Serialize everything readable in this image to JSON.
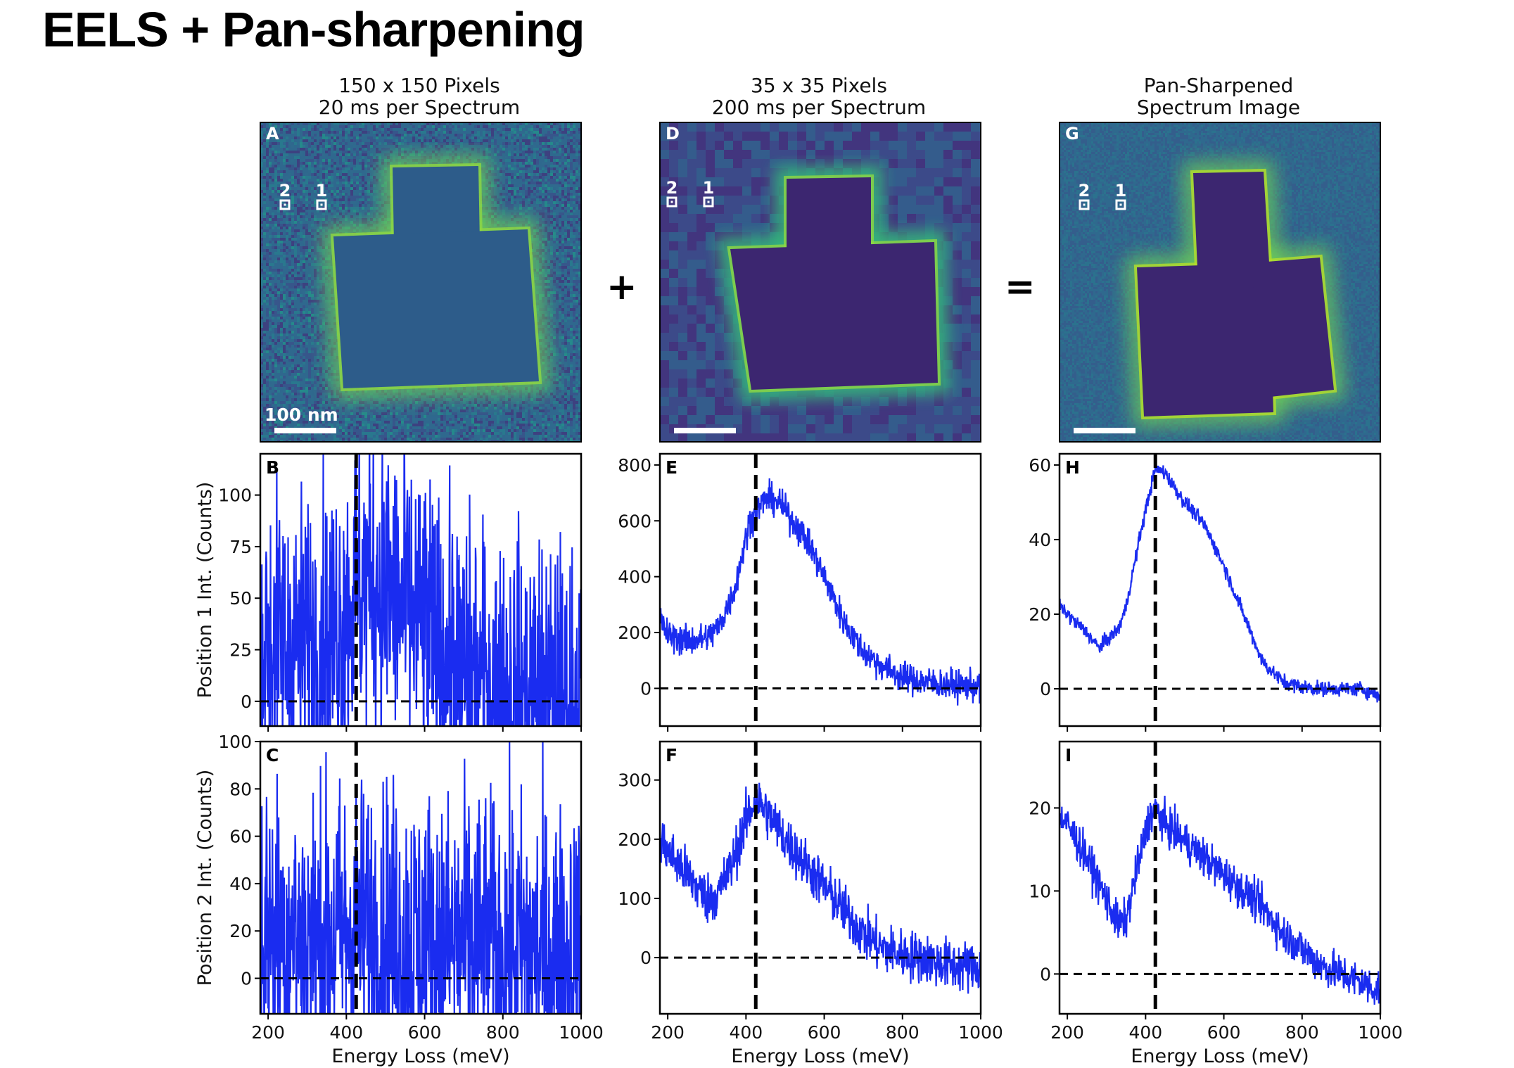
{
  "slide": {
    "title": "EELS + Pan-sharpening"
  },
  "columns": [
    {
      "title_line1": "150 x 150 Pixels",
      "title_line2": "20 ms per Spectrum"
    },
    {
      "title_line1": "35 x 35 Pixels",
      "title_line2": "200 ms per Spectrum"
    },
    {
      "title_line1": "Pan-Sharpened",
      "title_line2": "Spectrum Image"
    }
  ],
  "operators": {
    "plus": "+",
    "equals": "="
  },
  "images": [
    {
      "panel": "A",
      "scalebar_label": "100 nm",
      "markers": [
        "2",
        "1"
      ]
    },
    {
      "panel": "D",
      "scalebar_label": "",
      "markers": [
        "2",
        "1"
      ]
    },
    {
      "panel": "G",
      "scalebar_label": "",
      "markers": [
        "2",
        "1"
      ]
    }
  ],
  "colors": {
    "spectrum": "#1a2cf0",
    "dashed": "#000000",
    "colormap": "viridis"
  },
  "chart_data": [
    {
      "panel": "B",
      "type": "line",
      "row": "Position 1",
      "ylabel": "Position 1 Int. (Counts)",
      "xlabel": "",
      "xlim": [
        180,
        1000
      ],
      "ylim": [
        -12,
        120
      ],
      "yticks": [
        0,
        25,
        50,
        75,
        100
      ],
      "xticks": [
        200,
        400,
        600,
        800,
        1000
      ],
      "show_xticklabels": false,
      "vline": 425,
      "hline": 0,
      "noise": 38,
      "series": [
        {
          "x": [
            180,
            250,
            300,
            350,
            400,
            425,
            460,
            500,
            550,
            600,
            650,
            700,
            750,
            800,
            900,
            1000
          ],
          "y": [
            28,
            28,
            27,
            30,
            45,
            55,
            60,
            55,
            45,
            35,
            22,
            14,
            9,
            6,
            3,
            1
          ]
        }
      ]
    },
    {
      "panel": "E",
      "type": "line",
      "row": "Position 1",
      "ylabel": "",
      "xlabel": "",
      "xlim": [
        180,
        1000
      ],
      "ylim": [
        -135,
        840
      ],
      "yticks": [
        0,
        200,
        400,
        600,
        800
      ],
      "xticks": [
        200,
        400,
        600,
        800,
        1000
      ],
      "show_xticklabels": false,
      "vline": 425,
      "hline": 0,
      "noise": 28,
      "series": [
        {
          "x": [
            180,
            200,
            250,
            300,
            330,
            370,
            410,
            450,
            480,
            520,
            560,
            600,
            650,
            700,
            760,
            800,
            850,
            900,
            950,
            1000
          ],
          "y": [
            250,
            190,
            170,
            180,
            220,
            350,
            600,
            680,
            670,
            600,
            520,
            400,
            240,
            130,
            70,
            40,
            25,
            15,
            10,
            5
          ]
        }
      ]
    },
    {
      "panel": "H",
      "type": "line",
      "row": "Position 1",
      "ylabel": "",
      "xlabel": "",
      "xlim": [
        180,
        1000
      ],
      "ylim": [
        -10,
        63
      ],
      "yticks": [
        0,
        20,
        40,
        60
      ],
      "xticks": [
        200,
        400,
        600,
        800,
        1000
      ],
      "show_xticklabels": false,
      "vline": 425,
      "hline": 0,
      "noise": 1,
      "series": [
        {
          "x": [
            180,
            200,
            250,
            280,
            300,
            330,
            350,
            380,
            400,
            425,
            450,
            480,
            500,
            550,
            600,
            650,
            700,
            750,
            800,
            850,
            900,
            950,
            1000
          ],
          "y": [
            22,
            20,
            15,
            11,
            13,
            16,
            22,
            38,
            48,
            59,
            58,
            53,
            50,
            44,
            33,
            20,
            7,
            2,
            0.5,
            0,
            0,
            0,
            -2
          ]
        }
      ]
    },
    {
      "panel": "C",
      "type": "line",
      "row": "Position 2",
      "ylabel": "Position 2 Int. (Counts)",
      "xlabel": "Energy Loss (meV)",
      "xlim": [
        180,
        1000
      ],
      "ylim": [
        -15,
        100
      ],
      "yticks": [
        0,
        20,
        40,
        60,
        80,
        100
      ],
      "xticks": [
        200,
        400,
        600,
        800,
        1000
      ],
      "show_xticklabels": true,
      "vline": 425,
      "hline": 0,
      "noise": 32,
      "series": [
        {
          "x": [
            180,
            300,
            400,
            425,
            500,
            600,
            700,
            800,
            900,
            1000
          ],
          "y": [
            22,
            18,
            20,
            22,
            20,
            17,
            15,
            13,
            11,
            9
          ]
        }
      ]
    },
    {
      "panel": "F",
      "type": "line",
      "row": "Position 2",
      "ylabel": "",
      "xlabel": "Energy Loss (meV)",
      "xlim": [
        180,
        1000
      ],
      "ylim": [
        -95,
        365
      ],
      "yticks": [
        0,
        100,
        200,
        300
      ],
      "xticks": [
        200,
        400,
        600,
        800,
        1000
      ],
      "show_xticklabels": true,
      "vline": 425,
      "hline": 0,
      "noise": 22,
      "series": [
        {
          "x": [
            180,
            200,
            250,
            300,
            330,
            360,
            400,
            425,
            460,
            500,
            550,
            600,
            650,
            700,
            750,
            800,
            850,
            900,
            950,
            1000
          ],
          "y": [
            200,
            180,
            140,
            100,
            110,
            150,
            230,
            270,
            240,
            200,
            160,
            120,
            80,
            40,
            15,
            5,
            0,
            -10,
            -15,
            -15
          ]
        }
      ]
    },
    {
      "panel": "I",
      "type": "line",
      "row": "Position 2",
      "ylabel": "",
      "xlabel": "Energy Loss (meV)",
      "xlim": [
        180,
        1000
      ],
      "ylim": [
        -4.8,
        28
      ],
      "yticks": [
        0,
        10,
        20
      ],
      "xticks": [
        200,
        400,
        600,
        800,
        1000
      ],
      "show_xticklabels": true,
      "vline": 425,
      "hline": 0,
      "noise": 1.2,
      "series": [
        {
          "x": [
            180,
            200,
            250,
            300,
            330,
            350,
            380,
            410,
            425,
            450,
            500,
            550,
            600,
            650,
            700,
            750,
            800,
            850,
            900,
            950,
            1000
          ],
          "y": [
            19,
            18,
            14,
            9,
            6,
            6.5,
            13,
            19,
            20,
            18,
            16,
            14,
            12,
            10,
            8,
            5,
            3,
            1,
            0,
            -1,
            -2
          ]
        }
      ]
    }
  ]
}
